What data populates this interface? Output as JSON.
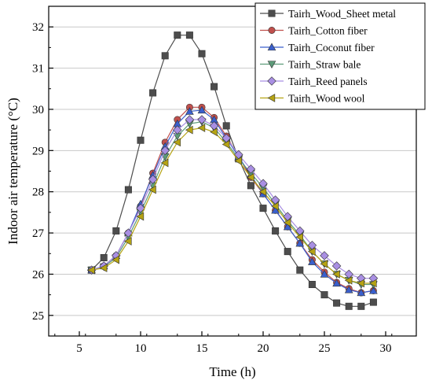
{
  "chart_data": {
    "type": "line",
    "xlabel": "Time (h)",
    "ylabel": "Indoor air temperature (°C)",
    "xlim": [
      2.5,
      32.5
    ],
    "ylim": [
      24.5,
      32.5
    ],
    "xticks": [
      5,
      10,
      15,
      20,
      25,
      30
    ],
    "yticks": [
      25,
      26,
      27,
      28,
      29,
      30,
      31,
      32
    ],
    "grid": "horizontal",
    "legend_position": "top-right",
    "x": [
      6,
      7,
      8,
      9,
      10,
      11,
      12,
      13,
      14,
      15,
      16,
      17,
      18,
      19,
      20,
      21,
      22,
      23,
      24,
      25,
      26,
      27,
      28,
      29
    ],
    "series": [
      {
        "name": "Tairh_Wood_Sheet metal",
        "marker": "square",
        "color": "#4d4d4d",
        "values": [
          26.1,
          26.4,
          27.05,
          28.05,
          29.25,
          30.4,
          31.3,
          31.8,
          31.8,
          31.35,
          30.55,
          29.6,
          28.8,
          28.15,
          27.6,
          27.05,
          26.55,
          26.1,
          25.75,
          25.5,
          25.3,
          25.22,
          25.22,
          25.32
        ]
      },
      {
        "name": "Tairh_Cotton fiber",
        "marker": "circle",
        "color": "#c0504d",
        "values": [
          26.1,
          26.2,
          26.45,
          27.0,
          27.65,
          28.45,
          29.2,
          29.75,
          30.05,
          30.05,
          29.8,
          29.35,
          28.85,
          28.35,
          27.95,
          27.55,
          27.15,
          26.75,
          26.35,
          26.05,
          25.8,
          25.65,
          25.55,
          25.6
        ]
      },
      {
        "name": "Tairh_Coconut fiber",
        "marker": "triangle-up",
        "color": "#3a5fcd",
        "values": [
          26.1,
          26.2,
          26.45,
          27.0,
          27.7,
          28.4,
          29.1,
          29.65,
          29.95,
          29.98,
          29.75,
          29.3,
          28.85,
          28.4,
          27.95,
          27.55,
          27.15,
          26.75,
          26.3,
          26.0,
          25.78,
          25.62,
          25.55,
          25.6
        ]
      },
      {
        "name": "Tairh_Straw bale",
        "marker": "triangle-down",
        "color": "#5d9b79",
        "values": [
          26.1,
          26.18,
          26.4,
          26.9,
          27.5,
          28.15,
          28.85,
          29.35,
          29.65,
          29.7,
          29.55,
          29.2,
          28.8,
          28.45,
          28.1,
          27.7,
          27.3,
          26.95,
          26.55,
          26.25,
          26.0,
          25.85,
          25.75,
          25.75
        ]
      },
      {
        "name": "Tairh_Reed panels",
        "marker": "diamond",
        "color": "#a98fe3",
        "values": [
          26.1,
          26.2,
          26.45,
          27.0,
          27.6,
          28.3,
          29.0,
          29.5,
          29.75,
          29.75,
          29.6,
          29.3,
          28.9,
          28.55,
          28.2,
          27.8,
          27.4,
          27.05,
          26.7,
          26.45,
          26.2,
          26.0,
          25.9,
          25.9
        ]
      },
      {
        "name": "Tairh_Wood wool",
        "marker": "triangle-left",
        "color": "#b5a313",
        "values": [
          26.1,
          26.15,
          26.35,
          26.8,
          27.4,
          28.05,
          28.7,
          29.2,
          29.5,
          29.55,
          29.45,
          29.15,
          28.75,
          28.35,
          28.0,
          27.65,
          27.25,
          26.9,
          26.55,
          26.25,
          26.0,
          25.85,
          25.78,
          25.78
        ]
      }
    ]
  }
}
